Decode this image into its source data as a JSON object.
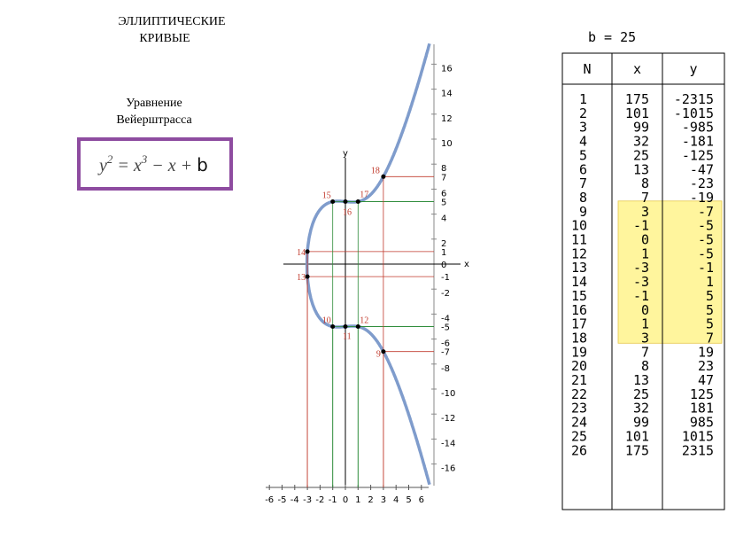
{
  "title": [
    "ЭЛЛИПТИЧЕСКИЕ",
    "КРИВЫЕ"
  ],
  "equation_caption": [
    "Уравнение",
    "Вейерштрасса"
  ],
  "equation": [
    "y",
    "2",
    " = x",
    "3",
    " − x + ",
    "b"
  ],
  "parameter": {
    "name": "b",
    "value": 25
  },
  "plot": {
    "x_label": "x",
    "y_label": "y",
    "x_ticks": [
      -6,
      -5,
      -4,
      -3,
      -2,
      -1,
      0,
      1,
      2,
      3,
      4,
      5,
      6
    ],
    "y_ticks": [
      16,
      14,
      12,
      10,
      8,
      6,
      4,
      2,
      -2,
      -4,
      -6,
      -8,
      -10,
      -12,
      -14,
      -16
    ],
    "y_marks": [
      7,
      5,
      1,
      0,
      -1,
      -5,
      -7
    ],
    "points": [
      {
        "n": 9,
        "x": 3,
        "y": -7
      },
      {
        "n": 10,
        "x": -1,
        "y": -5
      },
      {
        "n": 11,
        "x": 0,
        "y": -5
      },
      {
        "n": 12,
        "x": 1,
        "y": -5
      },
      {
        "n": 13,
        "x": -3,
        "y": -1
      },
      {
        "n": 14,
        "x": -3,
        "y": 1
      },
      {
        "n": 15,
        "x": -1,
        "y": 5
      },
      {
        "n": 16,
        "x": 0,
        "y": 5
      },
      {
        "n": 17,
        "x": 1,
        "y": 5
      },
      {
        "n": 18,
        "x": 3,
        "y": 7
      }
    ]
  },
  "table": {
    "header": [
      "N",
      "x",
      "y"
    ],
    "highlight_color": "#fff59d",
    "rows": [
      [
        1,
        175,
        -2315
      ],
      [
        2,
        101,
        -1015
      ],
      [
        3,
        99,
        -985
      ],
      [
        4,
        32,
        -181
      ],
      [
        5,
        25,
        -125
      ],
      [
        6,
        13,
        -47
      ],
      [
        7,
        8,
        -23
      ],
      [
        8,
        7,
        -19
      ],
      [
        9,
        3,
        -7
      ],
      [
        10,
        -1,
        -5
      ],
      [
        11,
        0,
        -5
      ],
      [
        12,
        1,
        -5
      ],
      [
        13,
        -3,
        -1
      ],
      [
        14,
        -3,
        1
      ],
      [
        15,
        -1,
        5
      ],
      [
        16,
        0,
        5
      ],
      [
        17,
        1,
        5
      ],
      [
        18,
        3,
        7
      ],
      [
        19,
        7,
        19
      ],
      [
        20,
        8,
        23
      ],
      [
        21,
        13,
        47
      ],
      [
        22,
        25,
        125
      ],
      [
        23,
        32,
        181
      ],
      [
        24,
        99,
        985
      ],
      [
        25,
        101,
        1015
      ],
      [
        26,
        175,
        2315
      ]
    ]
  }
}
